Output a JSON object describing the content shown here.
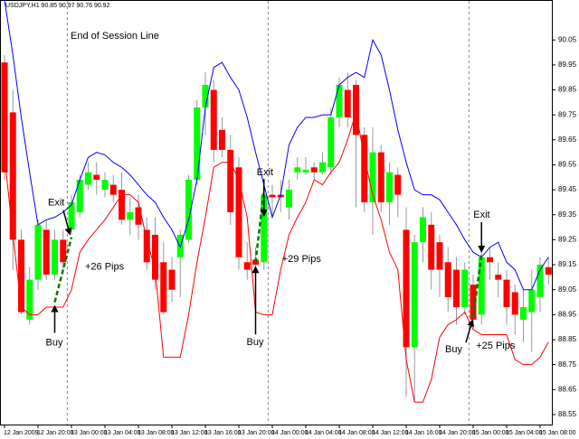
{
  "chart_data": {
    "type": "candlestick",
    "title": "USDJPY,H1  90.85 90.97 90.76 90.92",
    "note": "End of Session Line",
    "categories": [
      "12 Jan 2009",
      null,
      null,
      null,
      "12 Jan 20:00",
      null,
      null,
      null,
      "13 Jan 00:00",
      null,
      null,
      null,
      "13 Jan 04:00",
      null,
      null,
      null,
      "13 Jan 08:00",
      null,
      null,
      null,
      "13 Jan 12:00",
      null,
      null,
      null,
      "13 Jan 16:00",
      null,
      null,
      null,
      "13 Jan 20:00",
      null,
      null,
      null,
      "14 Jan 00:00",
      null,
      null,
      null,
      "14 Jan 04:00",
      null,
      null,
      null,
      "14 Jan 08:00",
      null,
      null,
      null,
      "14 Jan 12:00",
      null,
      null,
      null,
      "14 Jan 16:00",
      null,
      null,
      null,
      "14 Jan 20:00",
      null,
      null,
      null,
      "15 Jan 00:00",
      null,
      null,
      null,
      "15 Jan 04:00",
      null,
      null,
      null,
      "15 Jan 08:00",
      null
    ],
    "open": [
      89.96,
      89.76,
      89.25,
      88.93,
      89.09,
      89.29,
      89.11,
      89.25,
      89.29,
      89.36,
      89.47,
      89.51,
      89.45,
      89.47,
      89.45,
      89.33,
      89.38,
      89.29,
      89.27,
      89.16,
      89.13,
      89.18,
      89.25,
      89.49,
      89.78,
      89.85,
      89.69,
      89.61,
      89.54,
      89.16,
      89.17,
      89.16,
      89.43,
      89.43,
      89.38,
      89.52,
      89.52,
      89.54,
      89.52,
      89.54,
      89.74,
      89.85,
      89.87,
      89.67,
      89.4,
      89.6,
      89.4,
      89.51,
      89.29,
      88.82,
      89.24,
      89.31,
      89.24,
      89.16,
      89.13,
      88.98,
      89.07,
      88.95,
      89.18,
      89.11,
      89.09,
      89.04,
      88.93,
      88.96,
      89.02,
      89.14
    ],
    "high": [
      89.99,
      89.85,
      89.29,
      89.14,
      89.33,
      89.33,
      89.29,
      89.29,
      89.43,
      89.51,
      89.56,
      89.56,
      89.52,
      89.51,
      89.52,
      89.42,
      89.43,
      89.34,
      89.34,
      89.24,
      89.18,
      89.29,
      89.51,
      89.81,
      89.92,
      89.89,
      89.74,
      89.67,
      89.58,
      89.24,
      89.22,
      89.47,
      89.47,
      89.49,
      89.49,
      89.58,
      89.58,
      89.56,
      89.6,
      89.78,
      89.9,
      89.92,
      89.89,
      89.7,
      89.7,
      89.63,
      89.56,
      89.54,
      89.38,
      89.27,
      89.38,
      89.36,
      89.27,
      89.22,
      89.18,
      89.16,
      89.11,
      89.2,
      89.22,
      89.16,
      89.13,
      89.07,
      89.05,
      89.13,
      89.18,
      89.18
    ],
    "low": [
      89.49,
      89.13,
      88.95,
      88.91,
      89.05,
      89.09,
      89.09,
      89.13,
      89.27,
      89.34,
      89.45,
      89.43,
      89.42,
      89.4,
      89.31,
      89.27,
      89.25,
      89.13,
      89.05,
      88.95,
      89.0,
      89.02,
      89.24,
      89.47,
      89.67,
      89.56,
      89.58,
      89.31,
      89.13,
      89.09,
      89.13,
      89.13,
      89.34,
      89.36,
      89.33,
      89.49,
      89.51,
      89.49,
      89.51,
      89.51,
      89.7,
      89.7,
      89.38,
      89.36,
      89.27,
      89.36,
      89.31,
      89.34,
      88.62,
      88.6,
      89.16,
      89.05,
      89.02,
      88.96,
      88.91,
      88.95,
      88.89,
      88.91,
      89.09,
      89.02,
      88.91,
      88.87,
      88.84,
      88.8,
      88.96,
      89.07
    ],
    "close": [
      89.52,
      89.25,
      88.96,
      89.09,
      89.31,
      89.11,
      89.25,
      89.16,
      89.4,
      89.49,
      89.52,
      89.49,
      89.49,
      89.43,
      89.33,
      89.36,
      89.31,
      89.16,
      89.09,
      88.96,
      89.05,
      89.27,
      89.49,
      89.78,
      89.87,
      89.61,
      89.61,
      89.36,
      89.18,
      89.13,
      89.15,
      89.43,
      89.42,
      89.42,
      89.45,
      89.54,
      89.53,
      89.52,
      89.56,
      89.74,
      89.87,
      89.74,
      89.67,
      89.4,
      89.6,
      89.4,
      89.52,
      89.43,
      88.82,
      89.24,
      89.34,
      89.13,
      89.13,
      89.02,
      88.98,
      89.13,
      88.93,
      89.18,
      89.16,
      89.09,
      88.98,
      88.95,
      88.98,
      89.05,
      89.15,
      89.11
    ],
    "up_color": "#00ff00",
    "down_color": "#ff0000",
    "lines": [
      {
        "color": "#0000ff",
        "values": [
          90.21,
          89.99,
          89.74,
          89.52,
          89.31,
          89.33,
          89.34,
          89.36,
          89.39,
          89.49,
          89.58,
          89.6,
          89.59,
          89.56,
          89.54,
          89.51,
          89.47,
          89.43,
          89.4,
          89.34,
          89.29,
          89.22,
          89.33,
          89.49,
          89.78,
          89.94,
          89.96,
          89.9,
          89.85,
          89.74,
          89.6,
          89.47,
          89.34,
          89.43,
          89.63,
          89.7,
          89.74,
          89.74,
          89.75,
          89.75,
          89.87,
          89.9,
          89.92,
          89.9,
          90.05,
          89.99,
          89.85,
          89.69,
          89.56,
          89.45,
          89.43,
          89.43,
          89.41,
          89.36,
          89.31,
          89.25,
          89.2,
          89.18,
          89.22,
          89.24,
          89.16,
          89.13,
          89.05,
          89.05,
          89.13,
          89.18
        ]
      },
      {
        "color": "#ff0000",
        "values": [
          89.58,
          89.27,
          88.98,
          88.95,
          88.95,
          88.98,
          88.98,
          88.98,
          89.05,
          89.2,
          89.25,
          89.29,
          89.33,
          89.38,
          89.43,
          89.43,
          89.4,
          89.25,
          89.13,
          88.78,
          88.78,
          88.78,
          88.95,
          89.16,
          89.34,
          89.54,
          89.56,
          89.56,
          89.49,
          89.34,
          88.96,
          88.95,
          88.95,
          89.13,
          89.27,
          89.34,
          89.4,
          89.49,
          89.47,
          89.52,
          89.56,
          89.65,
          89.76,
          89.58,
          89.43,
          89.33,
          89.2,
          89.13,
          88.77,
          88.6,
          88.6,
          88.69,
          88.86,
          88.91,
          88.93,
          88.96,
          88.89,
          88.87,
          88.87,
          88.87,
          88.87,
          88.77,
          88.75,
          88.75,
          88.78,
          88.84
        ]
      }
    ],
    "trades": [
      {
        "entry_bar": 6,
        "entry": 89.0,
        "exit_bar": 8,
        "exit": 89.26,
        "entry_label": "Buy",
        "exit_label": "Exit",
        "result_label": "+26 Pips"
      },
      {
        "entry_bar": 30,
        "entry": 89.16,
        "exit_bar": 31,
        "exit": 89.45,
        "entry_label": "Buy",
        "exit_label": "Exit",
        "result_label": "+29 Pips"
      },
      {
        "entry_bar": 56,
        "entry": 88.94,
        "exit_bar": 57,
        "exit": 89.19,
        "entry_label": "Buy",
        "exit_label": "Exit",
        "result_label": "+25 Pips"
      }
    ],
    "ylim": [
      88.51,
      90.21
    ],
    "yticks": [
      90.05,
      89.95,
      89.85,
      89.75,
      89.65,
      89.55,
      89.45,
      89.35,
      89.25,
      89.15,
      89.05,
      88.95,
      88.85,
      88.75,
      88.65,
      88.55
    ],
    "grid": false
  }
}
